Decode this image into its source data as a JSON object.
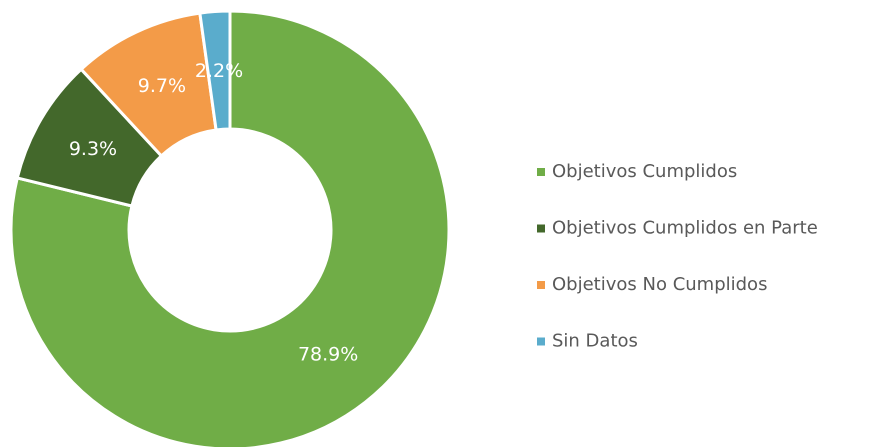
{
  "chart_data": {
    "type": "donut",
    "categories": [
      "Objetivos Cumplidos",
      "Objetivos Cumplidos en Parte",
      "Objetivos No Cumplidos",
      "Sin Datos"
    ],
    "values": [
      78.9,
      9.3,
      9.7,
      2.2
    ],
    "value_labels": [
      "78.9%",
      "9.3%",
      "9.7%",
      "2.2%"
    ],
    "colors": [
      "#70ad47",
      "#43682b",
      "#f39b48",
      "#5aaccc"
    ],
    "legend": "right"
  }
}
